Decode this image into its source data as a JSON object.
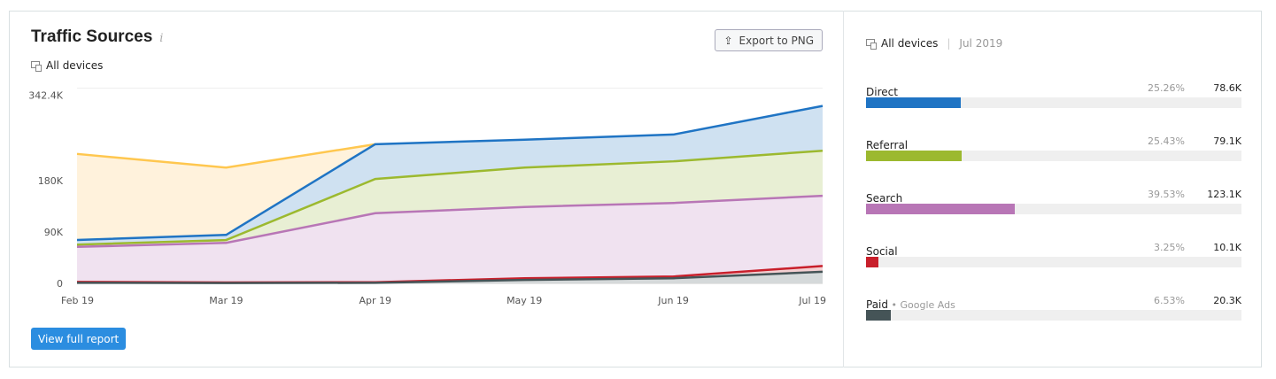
{
  "header": {
    "title": "Traffic Sources",
    "info_icon": "info-icon",
    "device": "All devices",
    "export_label": "Export to PNG"
  },
  "footer": {
    "view_label": "View full report"
  },
  "side": {
    "device": "All devices",
    "period": "Jul 2019",
    "rows": [
      {
        "label": "Direct",
        "sub": "",
        "pct": "25.26%",
        "value": "78.6K",
        "share": 25.26,
        "color": "#1f74c4"
      },
      {
        "label": "Referral",
        "sub": "",
        "pct": "25.43%",
        "value": "79.1K",
        "share": 25.43,
        "color": "#9cb92f"
      },
      {
        "label": "Search",
        "sub": "",
        "pct": "39.53%",
        "value": "123.1K",
        "share": 39.53,
        "color": "#b876b6"
      },
      {
        "label": "Social",
        "sub": "",
        "pct": "3.25%",
        "value": "10.1K",
        "share": 3.25,
        "color": "#c81f2b"
      },
      {
        "label": "Paid",
        "sub": "Google Ads",
        "pct": "6.53%",
        "value": "20.3K",
        "share": 6.53,
        "color": "#455457"
      }
    ]
  },
  "chart_data": {
    "type": "area",
    "stacked": true,
    "categories": [
      "Feb 19",
      "Mar 19",
      "Apr 19",
      "May 19",
      "Jun 19",
      "Jul 19"
    ],
    "ylim": [
      0,
      342.4
    ],
    "yticks": [
      0,
      90,
      180,
      342.4
    ],
    "ytick_labels": [
      "0",
      "90K",
      "180K",
      "342.4K"
    ],
    "grid": true,
    "series": [
      {
        "color": "#455457",
        "fill": "#d5d9da",
        "values": [
          1,
          0.5,
          1,
          6,
          9,
          20.3
        ]
      },
      {
        "color": "#c81f2b",
        "fill": "#f3d0d2",
        "values": [
          1.5,
          1,
          1,
          3,
          3,
          10.1
        ]
      },
      {
        "color": "#b876b6",
        "fill": "#f0e2f0",
        "values": [
          61.5,
          69.5,
          121,
          125,
          129,
          123.1
        ]
      },
      {
        "color": "#9cb92f",
        "fill": "#e8efd4",
        "values": [
          4,
          5,
          60,
          69,
          73,
          79.1
        ]
      },
      {
        "color": "#1f74c4",
        "fill": "#cfe1f1",
        "values": [
          8,
          9,
          61,
          49,
          47,
          78.6
        ]
      },
      {
        "color": "#ffc74f",
        "fill": "#fff2dc",
        "values": [
          151,
          118,
          0,
          null,
          null,
          null
        ]
      }
    ]
  }
}
